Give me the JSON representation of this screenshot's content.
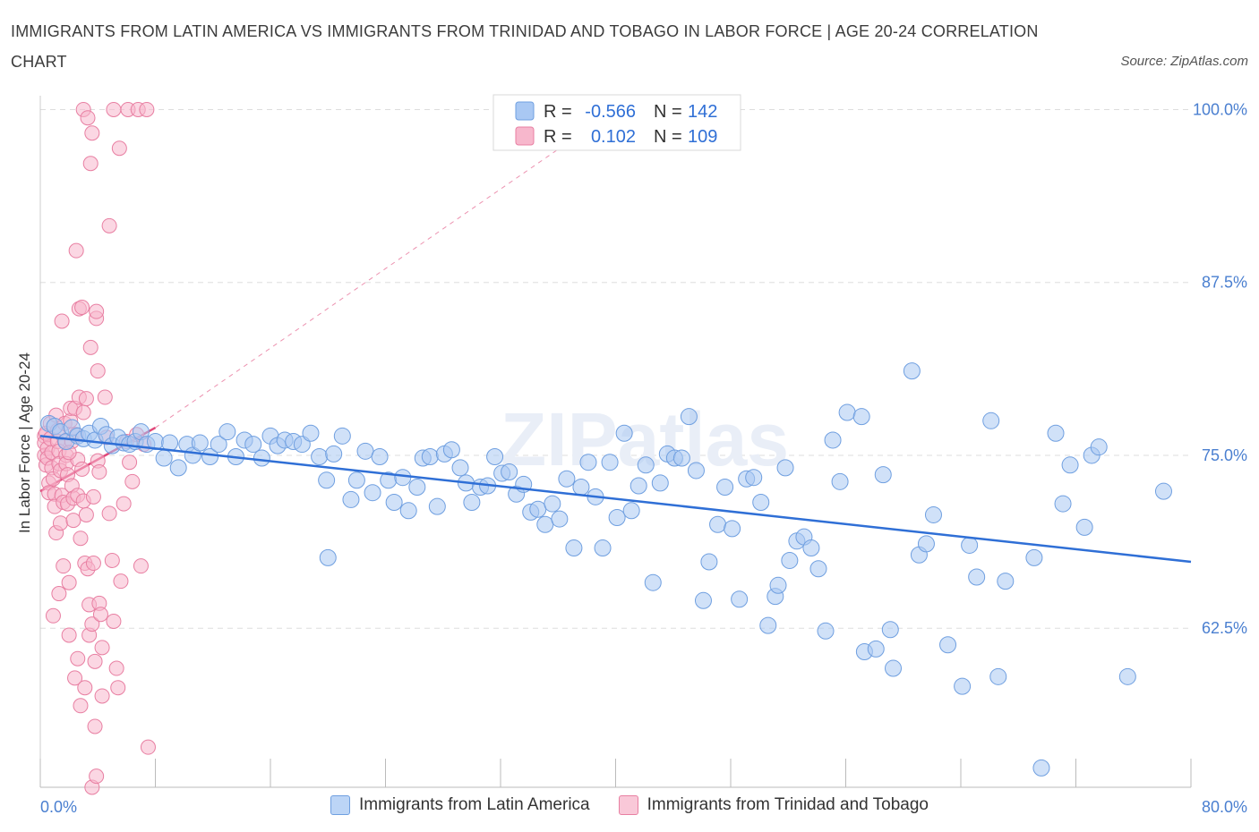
{
  "title": "IMMIGRANTS FROM LATIN AMERICA VS IMMIGRANTS FROM TRINIDAD AND TOBAGO IN LABOR FORCE | AGE 20-24 CORRELATION CHART",
  "source": "Source: ZipAtlas.com",
  "watermark": "ZIPatlas",
  "colors": {
    "blue_fill": "#a9c8f3",
    "blue_stroke": "#6f9fe0",
    "blue_line": "#2f6fd6",
    "pink_fill": "#f7b7cc",
    "pink_stroke": "#e87fa2",
    "pink_line": "#e0487a",
    "tick_text": "#4a7fd0",
    "grid": "#dddddd"
  },
  "legend": {
    "rows": [
      {
        "r_label": "R = ",
        "r_value": "-0.566",
        "n_label": "N = ",
        "n_value": "142"
      },
      {
        "r_label": "R = ",
        "r_value": "0.102",
        "n_label": "N = ",
        "n_value": "109"
      }
    ]
  },
  "chart_data": {
    "type": "scatter",
    "title": "IMMIGRANTS FROM LATIN AMERICA VS IMMIGRANTS FROM TRINIDAD AND TOBAGO IN LABOR FORCE | AGE 20-24 CORRELATION CHART",
    "xlabel": "",
    "ylabel": "In Labor Force | Age 20-24",
    "xlim": [
      0,
      80
    ],
    "ylim": [
      51,
      101
    ],
    "x_tick_labels": [
      "0.0%",
      "80.0%"
    ],
    "y_ticks": [
      62.5,
      75.0,
      87.5,
      100.0
    ],
    "y_tick_labels": [
      "62.5%",
      "75.0%",
      "87.5%",
      "100.0%"
    ],
    "grid": true,
    "legend_position": "top-center",
    "series": [
      {
        "name": "Immigrants from Latin America",
        "color": "#a9c8f3",
        "trend": {
          "x": [
            0,
            80
          ],
          "y": [
            76.4,
            67.3
          ]
        },
        "points": [
          [
            0.6,
            77.3
          ],
          [
            1.0,
            77.1
          ],
          [
            1.4,
            76.7
          ],
          [
            1.8,
            76.0
          ],
          [
            2.2,
            77.0
          ],
          [
            2.6,
            76.4
          ],
          [
            3.0,
            76.2
          ],
          [
            3.4,
            76.6
          ],
          [
            3.8,
            76.1
          ],
          [
            4.2,
            77.1
          ],
          [
            4.6,
            76.5
          ],
          [
            5.0,
            75.7
          ],
          [
            5.4,
            76.3
          ],
          [
            5.8,
            75.9
          ],
          [
            6.2,
            75.8
          ],
          [
            6.6,
            76.0
          ],
          [
            7.0,
            76.7
          ],
          [
            7.4,
            75.8
          ],
          [
            8.0,
            76.0
          ],
          [
            8.6,
            74.8
          ],
          [
            9.0,
            75.9
          ],
          [
            9.6,
            74.1
          ],
          [
            10.2,
            75.8
          ],
          [
            10.6,
            75.0
          ],
          [
            11.1,
            75.9
          ],
          [
            11.8,
            74.9
          ],
          [
            12.4,
            75.8
          ],
          [
            13.0,
            76.7
          ],
          [
            13.6,
            74.9
          ],
          [
            14.2,
            76.1
          ],
          [
            14.8,
            75.8
          ],
          [
            15.4,
            74.8
          ],
          [
            16.0,
            76.4
          ],
          [
            16.5,
            75.7
          ],
          [
            17.0,
            76.1
          ],
          [
            17.6,
            76.0
          ],
          [
            18.2,
            75.8
          ],
          [
            18.8,
            76.6
          ],
          [
            19.4,
            74.9
          ],
          [
            19.9,
            73.2
          ],
          [
            20.4,
            75.1
          ],
          [
            21.0,
            76.4
          ],
          [
            21.6,
            71.8
          ],
          [
            22.0,
            73.2
          ],
          [
            22.6,
            75.3
          ],
          [
            23.1,
            72.3
          ],
          [
            23.6,
            74.9
          ],
          [
            24.2,
            73.2
          ],
          [
            24.6,
            71.6
          ],
          [
            25.2,
            73.4
          ],
          [
            25.6,
            71.0
          ],
          [
            26.2,
            72.7
          ],
          [
            26.6,
            74.8
          ],
          [
            27.1,
            74.9
          ],
          [
            27.6,
            71.3
          ],
          [
            28.1,
            75.1
          ],
          [
            28.6,
            75.4
          ],
          [
            29.2,
            74.1
          ],
          [
            29.6,
            73.0
          ],
          [
            30.0,
            71.6
          ],
          [
            30.6,
            72.7
          ],
          [
            31.1,
            72.8
          ],
          [
            31.6,
            74.9
          ],
          [
            32.1,
            73.7
          ],
          [
            32.6,
            73.8
          ],
          [
            33.1,
            72.2
          ],
          [
            33.6,
            72.9
          ],
          [
            34.1,
            70.9
          ],
          [
            34.6,
            71.1
          ],
          [
            35.1,
            70.0
          ],
          [
            35.6,
            71.5
          ],
          [
            36.1,
            70.4
          ],
          [
            36.6,
            73.3
          ],
          [
            37.1,
            68.3
          ],
          [
            37.6,
            72.7
          ],
          [
            38.1,
            74.5
          ],
          [
            38.6,
            72.0
          ],
          [
            39.1,
            68.3
          ],
          [
            39.6,
            74.5
          ],
          [
            40.1,
            70.5
          ],
          [
            40.6,
            76.6
          ],
          [
            41.1,
            71.0
          ],
          [
            41.6,
            72.8
          ],
          [
            42.1,
            74.3
          ],
          [
            42.6,
            65.8
          ],
          [
            43.1,
            73.0
          ],
          [
            43.6,
            75.1
          ],
          [
            44.1,
            74.8
          ],
          [
            44.6,
            74.8
          ],
          [
            45.1,
            77.8
          ],
          [
            45.6,
            73.9
          ],
          [
            46.1,
            64.5
          ],
          [
            46.5,
            67.3
          ],
          [
            47.1,
            70.0
          ],
          [
            47.6,
            72.7
          ],
          [
            48.1,
            69.7
          ],
          [
            48.6,
            64.6
          ],
          [
            49.1,
            73.3
          ],
          [
            49.6,
            73.4
          ],
          [
            50.1,
            71.6
          ],
          [
            50.6,
            62.7
          ],
          [
            51.1,
            64.8
          ],
          [
            51.3,
            65.6
          ],
          [
            51.8,
            74.1
          ],
          [
            52.1,
            67.4
          ],
          [
            52.6,
            68.8
          ],
          [
            53.1,
            69.1
          ],
          [
            53.6,
            68.3
          ],
          [
            54.1,
            66.8
          ],
          [
            54.6,
            62.3
          ],
          [
            55.1,
            76.1
          ],
          [
            55.6,
            73.1
          ],
          [
            56.1,
            78.1
          ],
          [
            57.1,
            77.8
          ],
          [
            57.3,
            60.8
          ],
          [
            58.1,
            61.0
          ],
          [
            58.6,
            73.6
          ],
          [
            59.1,
            62.4
          ],
          [
            59.3,
            59.6
          ],
          [
            60.6,
            81.1
          ],
          [
            61.1,
            67.8
          ],
          [
            61.6,
            68.6
          ],
          [
            62.1,
            70.7
          ],
          [
            63.1,
            61.3
          ],
          [
            64.1,
            58.3
          ],
          [
            64.6,
            68.5
          ],
          [
            65.1,
            66.2
          ],
          [
            66.1,
            77.5
          ],
          [
            66.6,
            59.0
          ],
          [
            67.1,
            65.9
          ],
          [
            69.1,
            67.6
          ],
          [
            69.6,
            52.4
          ],
          [
            70.6,
            76.6
          ],
          [
            71.1,
            71.5
          ],
          [
            71.6,
            74.3
          ],
          [
            72.6,
            69.8
          ],
          [
            73.1,
            75.0
          ],
          [
            73.6,
            75.6
          ],
          [
            75.6,
            59.0
          ],
          [
            78.1,
            72.4
          ],
          [
            20.0,
            67.6
          ]
        ]
      },
      {
        "name": "Immigrants from Trinidad and Tobago",
        "color": "#f7b7cc",
        "trend": {
          "x": [
            0,
            8
          ],
          "y": [
            72.4,
            77.0
          ]
        },
        "trend_extension": {
          "x": [
            8,
            40
          ],
          "y": [
            77.0,
            100.0
          ]
        },
        "points": [
          [
            0.3,
            76.4
          ],
          [
            0.3,
            75.9
          ],
          [
            0.3,
            75.0
          ],
          [
            0.4,
            74.3
          ],
          [
            0.4,
            76.6
          ],
          [
            0.5,
            75.5
          ],
          [
            0.5,
            74.8
          ],
          [
            0.6,
            73.0
          ],
          [
            0.6,
            72.3
          ],
          [
            0.7,
            77.3
          ],
          [
            0.7,
            76.2
          ],
          [
            0.8,
            75.2
          ],
          [
            0.8,
            74.1
          ],
          [
            0.9,
            73.3
          ],
          [
            1.0,
            72.2
          ],
          [
            1.0,
            71.3
          ],
          [
            1.1,
            77.9
          ],
          [
            1.1,
            69.4
          ],
          [
            1.2,
            76.8
          ],
          [
            1.2,
            76.0
          ],
          [
            1.3,
            75.3
          ],
          [
            1.3,
            74.4
          ],
          [
            1.4,
            73.9
          ],
          [
            1.4,
            70.1
          ],
          [
            1.5,
            84.7
          ],
          [
            1.5,
            72.1
          ],
          [
            1.6,
            71.6
          ],
          [
            1.6,
            67.0
          ],
          [
            1.7,
            77.3
          ],
          [
            1.7,
            76.0
          ],
          [
            1.8,
            75.0
          ],
          [
            1.8,
            74.4
          ],
          [
            1.9,
            73.6
          ],
          [
            1.9,
            71.5
          ],
          [
            2.0,
            65.8
          ],
          [
            2.0,
            62.0
          ],
          [
            2.1,
            77.5
          ],
          [
            2.1,
            78.4
          ],
          [
            2.2,
            76.0
          ],
          [
            2.2,
            72.8
          ],
          [
            2.3,
            71.9
          ],
          [
            2.3,
            70.3
          ],
          [
            2.4,
            78.4
          ],
          [
            2.4,
            58.9
          ],
          [
            2.5,
            89.8
          ],
          [
            2.5,
            76.5
          ],
          [
            2.6,
            74.7
          ],
          [
            2.6,
            72.1
          ],
          [
            2.7,
            85.6
          ],
          [
            2.7,
            79.2
          ],
          [
            2.8,
            69.0
          ],
          [
            2.8,
            56.9
          ],
          [
            2.9,
            85.7
          ],
          [
            2.9,
            74.0
          ],
          [
            3.0,
            78.1
          ],
          [
            3.0,
            71.7
          ],
          [
            3.1,
            67.2
          ],
          [
            3.1,
            58.2
          ],
          [
            3.2,
            79.1
          ],
          [
            3.2,
            70.7
          ],
          [
            3.3,
            66.8
          ],
          [
            3.4,
            64.2
          ],
          [
            3.4,
            62.0
          ],
          [
            3.5,
            96.1
          ],
          [
            3.5,
            82.8
          ],
          [
            3.6,
            62.8
          ],
          [
            3.6,
            51.0
          ],
          [
            3.7,
            72.0
          ],
          [
            3.7,
            67.2
          ],
          [
            3.8,
            60.1
          ],
          [
            3.8,
            55.4
          ],
          [
            3.9,
            84.9
          ],
          [
            3.9,
            85.4
          ],
          [
            4.0,
            81.1
          ],
          [
            4.0,
            74.6
          ],
          [
            4.1,
            73.8
          ],
          [
            4.1,
            64.3
          ],
          [
            4.2,
            63.5
          ],
          [
            4.3,
            61.1
          ],
          [
            4.3,
            57.6
          ],
          [
            4.5,
            79.2
          ],
          [
            4.6,
            76.3
          ],
          [
            4.8,
            91.6
          ],
          [
            4.8,
            70.8
          ],
          [
            5.0,
            67.4
          ],
          [
            5.1,
            63.0
          ],
          [
            5.3,
            59.6
          ],
          [
            5.4,
            58.2
          ],
          [
            5.5,
            97.2
          ],
          [
            5.6,
            65.9
          ],
          [
            5.8,
            71.5
          ],
          [
            6.0,
            76.0
          ],
          [
            6.2,
            74.5
          ],
          [
            6.4,
            73.1
          ],
          [
            3.0,
            100.0
          ],
          [
            3.6,
            98.3
          ],
          [
            5.1,
            100.0
          ],
          [
            6.1,
            100.0
          ],
          [
            6.8,
            100.0
          ],
          [
            7.4,
            100.0
          ],
          [
            6.7,
            76.5
          ],
          [
            7.2,
            75.8
          ],
          [
            7.0,
            67.0
          ],
          [
            7.5,
            53.9
          ],
          [
            3.3,
            99.4
          ],
          [
            2.0,
            75.2
          ],
          [
            1.3,
            65.0
          ],
          [
            0.9,
            63.4
          ],
          [
            2.6,
            60.3
          ],
          [
            3.9,
            51.8
          ]
        ]
      }
    ]
  }
}
